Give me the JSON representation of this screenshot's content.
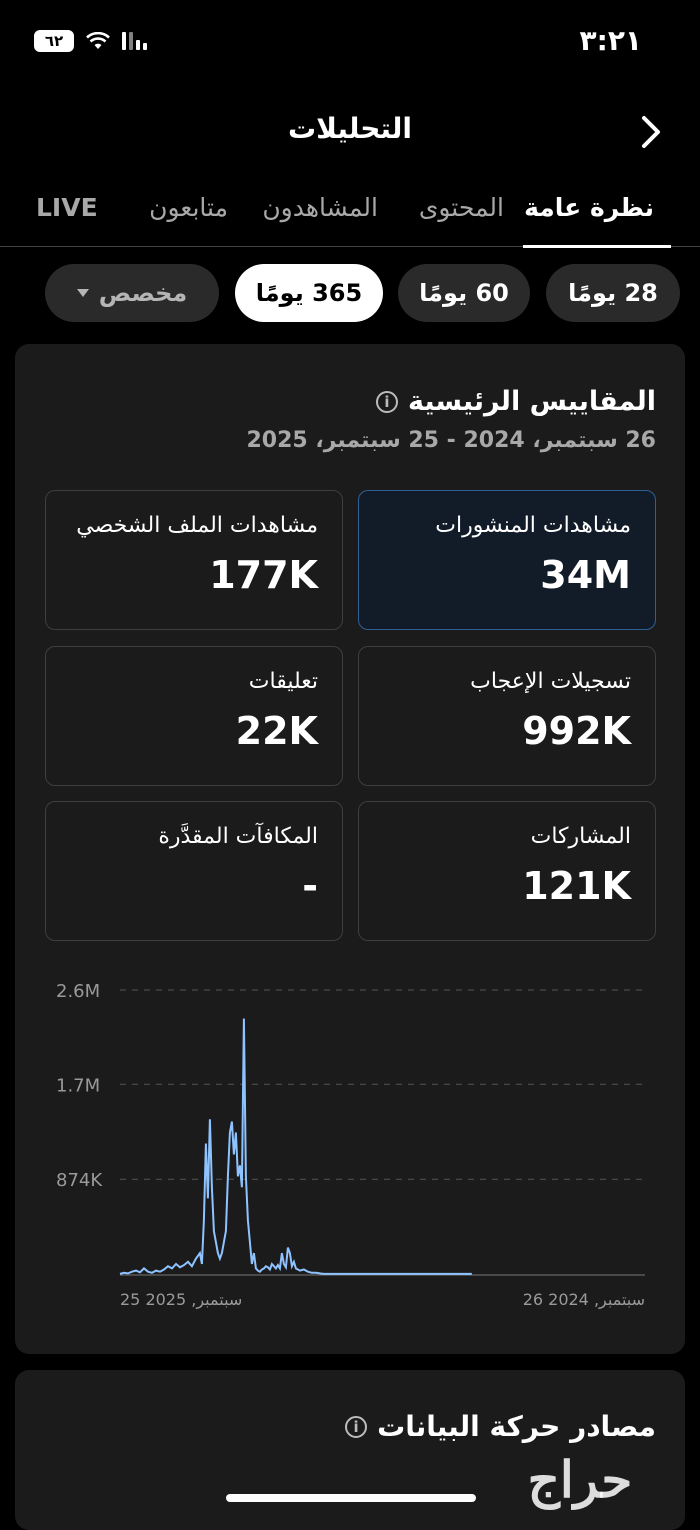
{
  "status_bar": {
    "time": "٣:٢١",
    "battery": "٦٢"
  },
  "header": {
    "title": "التحليلات"
  },
  "tabs": [
    {
      "label": "نظرة عامة",
      "active": true
    },
    {
      "label": "المحتوى",
      "active": false
    },
    {
      "label": "المشاهدون",
      "active": false
    },
    {
      "label": "متابعون",
      "active": false
    },
    {
      "label": "LIVE",
      "active": false
    }
  ],
  "ranges": [
    {
      "label": "28 يومًا",
      "selected": false
    },
    {
      "label": "60 يومًا",
      "selected": false
    },
    {
      "label": "365 يومًا",
      "selected": true
    },
    {
      "label": "مخصص",
      "selected": false
    }
  ],
  "metrics_section": {
    "title": "المقاييس الرئيسية",
    "date_range": "26 سبتمبر، 2024 - 25 سبتمبر، 2025",
    "items": [
      {
        "label": "مشاهدات المنشورات",
        "value": "34M",
        "highlighted": true
      },
      {
        "label": "مشاهدات الملف الشخصي",
        "value": "177K"
      },
      {
        "label": "تسجيلات الإعجاب",
        "value": "992K"
      },
      {
        "label": "تعليقات",
        "value": "22K"
      },
      {
        "label": "المشاركات",
        "value": "121K"
      },
      {
        "label": "المكافآت المقدَّرة",
        "value": "-"
      }
    ]
  },
  "chart_data": {
    "type": "line",
    "y_ticks": [
      "2.6M",
      "1.7M",
      "874K"
    ],
    "ylim": [
      0,
      2600000
    ],
    "x_labels": [
      "25 2025 ,سبتمبر",
      "26 2024 ,سبتمبر"
    ],
    "x": [
      0,
      4,
      8,
      12,
      16,
      20,
      24,
      28,
      32,
      36,
      40,
      44,
      48,
      52,
      56,
      60,
      64,
      68,
      72,
      76,
      80,
      82,
      84,
      86,
      88,
      90,
      92,
      94,
      96,
      98,
      100,
      102,
      104,
      106,
      108,
      110,
      112,
      114,
      116,
      118,
      120,
      122,
      124,
      126,
      128,
      130,
      132,
      134,
      136,
      138,
      140,
      142,
      144,
      146,
      148,
      150,
      152,
      154,
      156,
      158,
      160,
      162,
      164,
      166,
      168,
      170,
      172,
      174,
      176,
      180,
      184,
      188,
      192,
      196,
      200,
      204,
      208,
      212,
      216,
      220,
      224,
      228,
      232,
      236,
      240,
      244,
      260,
      280,
      300,
      320,
      340,
      352
    ],
    "values": [
      10000,
      20000,
      15000,
      30000,
      40000,
      25000,
      60000,
      30000,
      20000,
      40000,
      30000,
      50000,
      80000,
      60000,
      100000,
      70000,
      90000,
      120000,
      80000,
      150000,
      200000,
      100000,
      500000,
      1200000,
      700000,
      1420000,
      800000,
      400000,
      300000,
      200000,
      150000,
      200000,
      300000,
      400000,
      900000,
      1300000,
      1400000,
      1100000,
      1300000,
      900000,
      1000000,
      800000,
      2340000,
      900000,
      500000,
      300000,
      100000,
      200000,
      60000,
      40000,
      30000,
      50000,
      60000,
      80000,
      70000,
      50000,
      100000,
      80000,
      60000,
      90000,
      60000,
      200000,
      100000,
      70000,
      250000,
      200000,
      80000,
      120000,
      60000,
      40000,
      50000,
      30000,
      20000,
      20000,
      15000,
      10000,
      10000,
      10000,
      10000,
      10000,
      10000,
      10000,
      10000,
      10000,
      10000,
      10000,
      10000,
      10000,
      10000,
      10000,
      10000,
      10000
    ],
    "color": "#8ec3ff",
    "grid": true
  },
  "traffic_section": {
    "title": "مصادر حركة البيانات"
  },
  "watermark": "حراج"
}
